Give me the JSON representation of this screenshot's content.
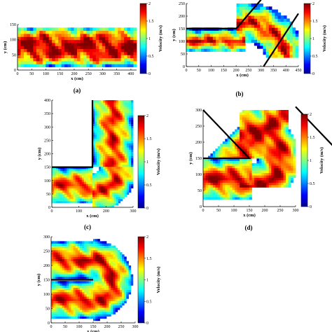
{
  "chart_data": [
    {
      "type": "heatmap",
      "panel_label": "(a)",
      "geometry": "straight channel",
      "xlabel": "x (cm)",
      "ylabel": "y (cm)",
      "xlim": [
        0,
        420
      ],
      "ylim": [
        0,
        150
      ],
      "xticks": [
        "0",
        "50",
        "100",
        "150",
        "200",
        "250",
        "300",
        "350",
        "400"
      ],
      "yticks": [
        "0",
        "50",
        "100",
        "150"
      ],
      "colorbar": {
        "label": "Velocity (m/s)",
        "range": [
          0,
          2
        ],
        "ticks": [
          "0",
          "0.5",
          "1",
          "1.5",
          "2"
        ]
      }
    },
    {
      "type": "heatmap",
      "panel_label": "(b)",
      "geometry": "45-degree bend",
      "xlabel": "x (cm)",
      "ylabel": "y (cm)",
      "xlim": [
        0,
        450
      ],
      "ylim": [
        0,
        250
      ],
      "xticks": [
        "0",
        "50",
        "100",
        "150",
        "200",
        "250",
        "300",
        "350",
        "400",
        "450"
      ],
      "yticks": [
        "0",
        "50",
        "100",
        "150",
        "200",
        "250"
      ],
      "colorbar": {
        "label": "Velocity (m/s)",
        "range": [
          0,
          2
        ],
        "ticks": [
          "0",
          "0.5",
          "1",
          "1.5",
          "2"
        ]
      }
    },
    {
      "type": "heatmap",
      "panel_label": "(c)",
      "geometry": "90-degree bend",
      "xlabel": "x (cm)",
      "ylabel": "y (cm)",
      "xlim": [
        0,
        300
      ],
      "ylim": [
        0,
        400
      ],
      "xticks": [
        "0",
        "100",
        "200",
        "300"
      ],
      "yticks": [
        "0",
        "50",
        "100",
        "150",
        "200",
        "250",
        "300",
        "350",
        "400"
      ],
      "colorbar": {
        "label": "Velocity (m/s)",
        "range": [
          0,
          2
        ],
        "ticks": [
          "0",
          "0.5",
          "1",
          "1.5",
          "2"
        ]
      }
    },
    {
      "type": "heatmap",
      "panel_label": "(d)",
      "geometry": "135-degree bend",
      "xlabel": "x (cm)",
      "ylabel": "y (cm)",
      "xlim": [
        0,
        300
      ],
      "ylim": [
        0,
        300
      ],
      "xticks": [
        "0",
        "50",
        "100",
        "150",
        "200",
        "250",
        "300"
      ],
      "yticks": [
        "0",
        "50",
        "100",
        "150",
        "200",
        "250",
        "300"
      ],
      "colorbar": {
        "label": "Velocity (m/s)",
        "range": [
          0,
          2
        ],
        "ticks": [
          "0",
          "0.5",
          "1",
          "1.5",
          "2"
        ]
      }
    },
    {
      "type": "heatmap",
      "panel_label": "",
      "geometry": "180-degree bend",
      "xlabel": "x (cm)",
      "ylabel": "y (cm)",
      "xlim": [
        0,
        300
      ],
      "ylim": [
        0,
        300
      ],
      "xticks": [
        "0",
        "50",
        "100",
        "150",
        "200",
        "250",
        "300"
      ],
      "yticks": [
        "0",
        "50",
        "100",
        "150",
        "200",
        "250",
        "300"
      ],
      "colorbar": {
        "label": "Velocity (m/s)",
        "range": [
          0,
          2
        ],
        "ticks": [
          "0",
          "0.5",
          "1",
          "1.5",
          "2"
        ]
      }
    }
  ]
}
